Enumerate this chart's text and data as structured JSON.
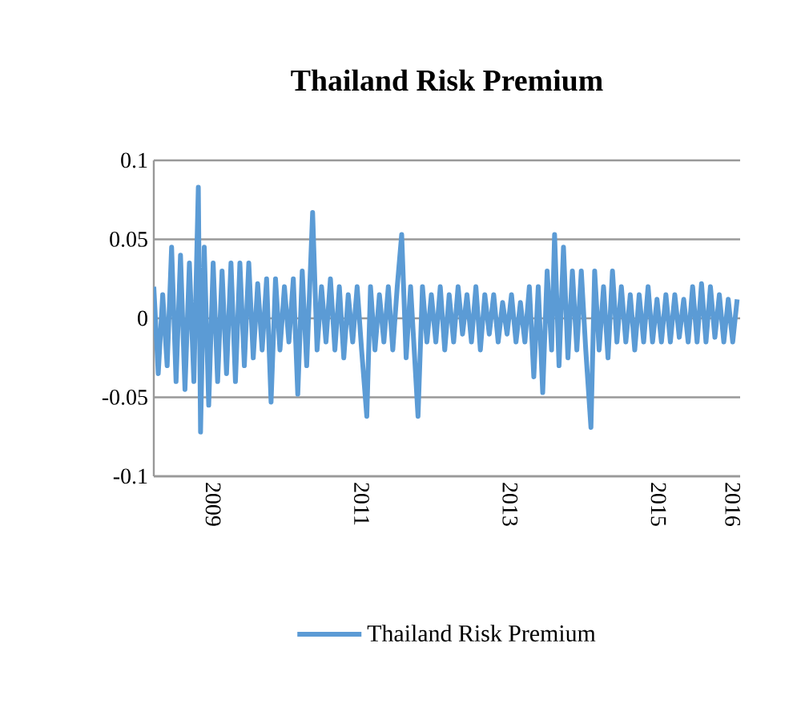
{
  "chart_data": {
    "type": "line",
    "title": "Thailand Risk Premium",
    "x": [
      2008.2,
      2008.26,
      2008.32,
      2008.38,
      2008.44,
      2008.5,
      2008.56,
      2008.62,
      2008.68,
      2008.74,
      2008.8,
      2008.83,
      2008.88,
      2008.94,
      2009.0,
      2009.06,
      2009.12,
      2009.18,
      2009.24,
      2009.3,
      2009.36,
      2009.42,
      2009.48,
      2009.54,
      2009.6,
      2009.66,
      2009.72,
      2009.78,
      2009.84,
      2009.9,
      2009.96,
      2010.02,
      2010.08,
      2010.14,
      2010.2,
      2010.26,
      2010.34,
      2010.4,
      2010.46,
      2010.52,
      2010.58,
      2010.64,
      2010.7,
      2010.76,
      2010.82,
      2010.88,
      2010.94,
      2011.0,
      2011.07,
      2011.12,
      2011.18,
      2011.24,
      2011.3,
      2011.36,
      2011.42,
      2011.48,
      2011.54,
      2011.6,
      2011.66,
      2011.76,
      2011.82,
      2011.88,
      2011.94,
      2012.0,
      2012.06,
      2012.12,
      2012.18,
      2012.24,
      2012.3,
      2012.36,
      2012.42,
      2012.48,
      2012.54,
      2012.6,
      2012.66,
      2012.72,
      2012.78,
      2012.84,
      2012.9,
      2012.96,
      2013.02,
      2013.08,
      2013.14,
      2013.2,
      2013.26,
      2013.32,
      2013.38,
      2013.44,
      2013.5,
      2013.56,
      2013.6,
      2013.66,
      2013.72,
      2013.78,
      2013.84,
      2013.9,
      2013.96,
      2014.02,
      2014.09,
      2014.14,
      2014.2,
      2014.26,
      2014.32,
      2014.38,
      2014.44,
      2014.5,
      2014.56,
      2014.62,
      2014.68,
      2014.74,
      2014.8,
      2014.86,
      2014.92,
      2014.98,
      2015.04,
      2015.1,
      2015.16,
      2015.22,
      2015.28,
      2015.34,
      2015.4,
      2015.46,
      2015.52,
      2015.58,
      2015.64,
      2015.7,
      2015.76,
      2015.82,
      2015.88,
      2015.94,
      2016.0,
      2016.06
    ],
    "series": [
      {
        "name": "Thailand Risk Premium",
        "color": "#5b9bd5",
        "values": [
          0.02,
          -0.035,
          0.015,
          -0.03,
          0.045,
          -0.04,
          0.04,
          -0.045,
          0.035,
          -0.04,
          0.083,
          -0.072,
          0.045,
          -0.055,
          0.035,
          -0.04,
          0.03,
          -0.035,
          0.035,
          -0.04,
          0.035,
          -0.03,
          0.035,
          -0.025,
          0.022,
          -0.02,
          0.025,
          -0.053,
          0.025,
          -0.02,
          0.02,
          -0.015,
          0.025,
          -0.048,
          0.03,
          -0.03,
          0.067,
          -0.02,
          0.02,
          -0.015,
          0.025,
          -0.02,
          0.02,
          -0.025,
          0.015,
          -0.015,
          0.02,
          -0.02,
          -0.062,
          0.02,
          -0.02,
          0.015,
          -0.015,
          0.02,
          -0.02,
          0.02,
          0.053,
          -0.025,
          0.02,
          -0.062,
          0.02,
          -0.015,
          0.015,
          -0.015,
          0.02,
          -0.02,
          0.015,
          -0.015,
          0.02,
          -0.01,
          0.015,
          -0.015,
          0.02,
          -0.02,
          0.015,
          -0.01,
          0.015,
          -0.015,
          0.01,
          -0.01,
          0.015,
          -0.015,
          0.01,
          -0.015,
          0.02,
          -0.037,
          0.02,
          -0.047,
          0.03,
          -0.02,
          0.053,
          -0.03,
          0.045,
          -0.025,
          0.03,
          -0.02,
          0.03,
          -0.02,
          -0.069,
          0.03,
          -0.02,
          0.02,
          -0.025,
          0.03,
          -0.015,
          0.02,
          -0.015,
          0.015,
          -0.02,
          0.015,
          -0.015,
          0.02,
          -0.015,
          0.012,
          -0.015,
          0.015,
          -0.015,
          0.015,
          -0.012,
          0.012,
          -0.015,
          0.02,
          -0.015,
          0.022,
          -0.015,
          0.02,
          -0.012,
          0.015,
          -0.015,
          0.012,
          -0.015,
          0.012
        ]
      }
    ],
    "xlim": [
      2008.2,
      2016.1
    ],
    "xticks": [
      2009,
      2011,
      2013,
      2015,
      2016
    ],
    "ylim": [
      -0.1,
      0.1
    ],
    "yticks": [
      -0.1,
      -0.05,
      0,
      0.05,
      0.1
    ],
    "grid": "y",
    "legend": "bottom"
  }
}
